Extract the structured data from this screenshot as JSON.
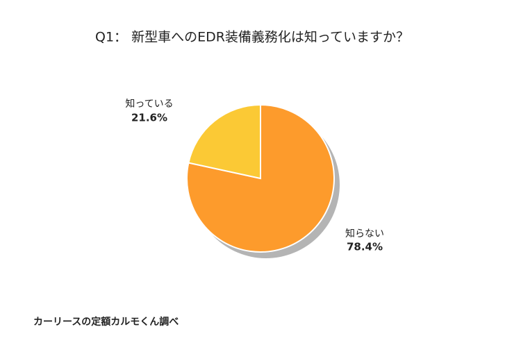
{
  "chart_data": {
    "type": "pie",
    "title": "Q1： 新型車へのEDR装備義務化は知っていますか？",
    "categories": [
      "知らない",
      "知っている"
    ],
    "values": [
      78.4,
      21.6
    ],
    "value_labels": [
      "78.4%",
      "21.6%"
    ],
    "colors": [
      "#fd9b2c",
      "#fbc935"
    ],
    "source": "カーリースの定額カルモくん調べ"
  }
}
